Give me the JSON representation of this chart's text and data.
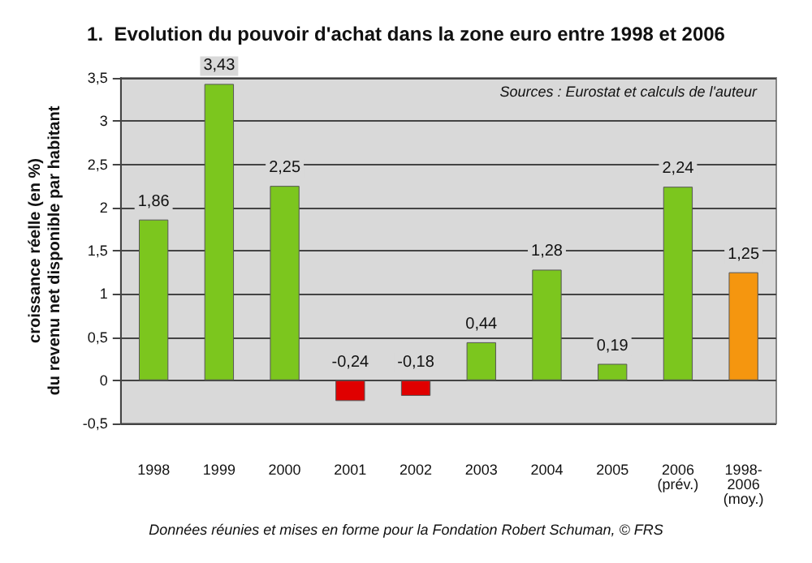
{
  "chart_data": {
    "type": "bar",
    "title": "1.  Evolution du pouvoir d'achat dans la zone euro entre 1998 et 2006",
    "ylabel": "croissance réelle (en %)\ndu revenu net disponible par habitant",
    "categories": [
      "1998",
      "1999",
      "2000",
      "2001",
      "2002",
      "2003",
      "2004",
      "2005",
      "2006\n(prév.)",
      "1998-\n2006\n(moy.)"
    ],
    "values": [
      1.86,
      3.43,
      2.25,
      -0.24,
      -0.18,
      0.44,
      1.28,
      0.19,
      2.24,
      1.25
    ],
    "colors": [
      "#7cc61e",
      "#7cc61e",
      "#7cc61e",
      "#e00000",
      "#e00000",
      "#7cc61e",
      "#7cc61e",
      "#7cc61e",
      "#7cc61e",
      "#f5960f"
    ],
    "value_labels": [
      "1,86",
      "3,43",
      "2,25",
      "-0,24",
      "-0,18",
      "0,44",
      "1,28",
      "0,19",
      "2,24",
      "1,25"
    ],
    "ylim": [
      -0.5,
      3.5
    ],
    "yticks": [
      {
        "value": -0.5,
        "label": "-0,5"
      },
      0,
      {
        "value": 0.5,
        "label": "0,5"
      },
      1,
      {
        "value": 1.5,
        "label": "1,5"
      },
      2,
      {
        "value": 2.5,
        "label": "2,5"
      },
      3,
      {
        "value": 3.5,
        "label": "3,5"
      }
    ],
    "grid": "y",
    "annotations": [
      "Sources : Eurostat et calculs de l'auteur",
      "Données réunies et mises en forme pour la Fondation Robert Schuman, © FRS"
    ]
  }
}
